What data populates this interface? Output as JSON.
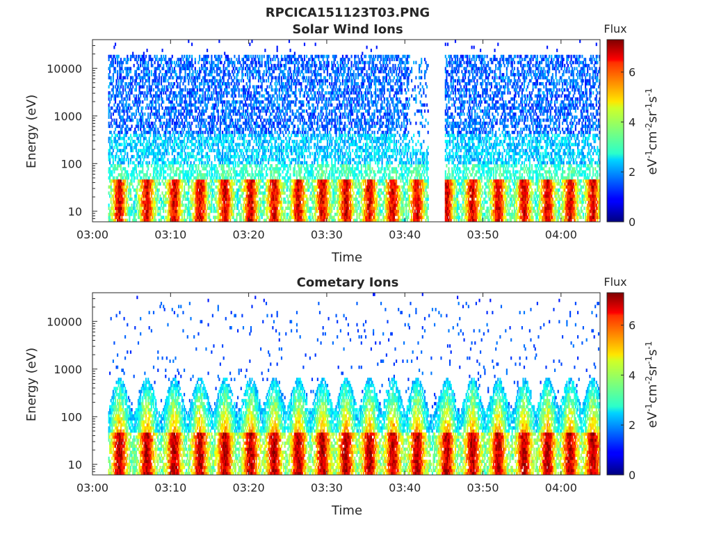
{
  "figure_title": "RPCICA151123T03.PNG",
  "chart_data": [
    {
      "type": "heatmap",
      "title": "Solar Wind Ions",
      "xlabel": "Time",
      "ylabel": "Energy (eV)",
      "yscale": "log",
      "ylim": [
        6,
        40000
      ],
      "xlim": [
        "03:00",
        "04:05"
      ],
      "x_ticks": [
        "03:00",
        "03:10",
        "03:20",
        "03:30",
        "03:40",
        "03:50",
        "04:00"
      ],
      "y_ticks": [
        "10",
        "100",
        "1000",
        "10000"
      ],
      "data_start": "03:02",
      "data_end": "04:05",
      "data_gap": [
        "03:43",
        "03:45"
      ],
      "colorbar": {
        "label": "Flux",
        "units": "eV-1cm-2sr-1s-1",
        "range": [
          0,
          7.3
        ],
        "ticks": [
          "0",
          "2",
          "4",
          "6"
        ],
        "colormap": "jet"
      },
      "pulse_times_min": [
        3.4,
        6.9,
        10.4,
        13.7,
        16.9,
        20.2,
        23.2,
        26.3,
        29.4,
        32.4,
        35.4,
        38.4,
        41.5,
        45.3,
        48.6,
        51.9,
        55.2,
        58.2,
        61.1,
        64
      ]
    },
    {
      "type": "heatmap",
      "title": "Cometary Ions",
      "xlabel": "Time",
      "ylabel": "Energy (eV)",
      "yscale": "log",
      "ylim": [
        6,
        40000
      ],
      "xlim": [
        "03:00",
        "04:05"
      ],
      "x_ticks": [
        "03:00",
        "03:10",
        "03:20",
        "03:30",
        "03:40",
        "03:50",
        "04:00"
      ],
      "y_ticks": [
        "10",
        "100",
        "1000",
        "10000"
      ],
      "data_start": "03:02",
      "data_end": "04:05",
      "colorbar": {
        "label": "Flux",
        "units": "eV-1cm-2sr-1s-1",
        "range": [
          0,
          7.3
        ],
        "ticks": [
          "0",
          "2",
          "4",
          "6"
        ],
        "colormap": "jet"
      },
      "pulse_times_min": [
        3.4,
        6.9,
        10.4,
        13.7,
        16.9,
        20.2,
        23.2,
        26.3,
        29.4,
        32.4,
        35.4,
        38.4,
        41.5,
        45.3,
        48.6,
        51.9,
        55.2,
        58.2,
        61.1,
        64
      ]
    }
  ]
}
